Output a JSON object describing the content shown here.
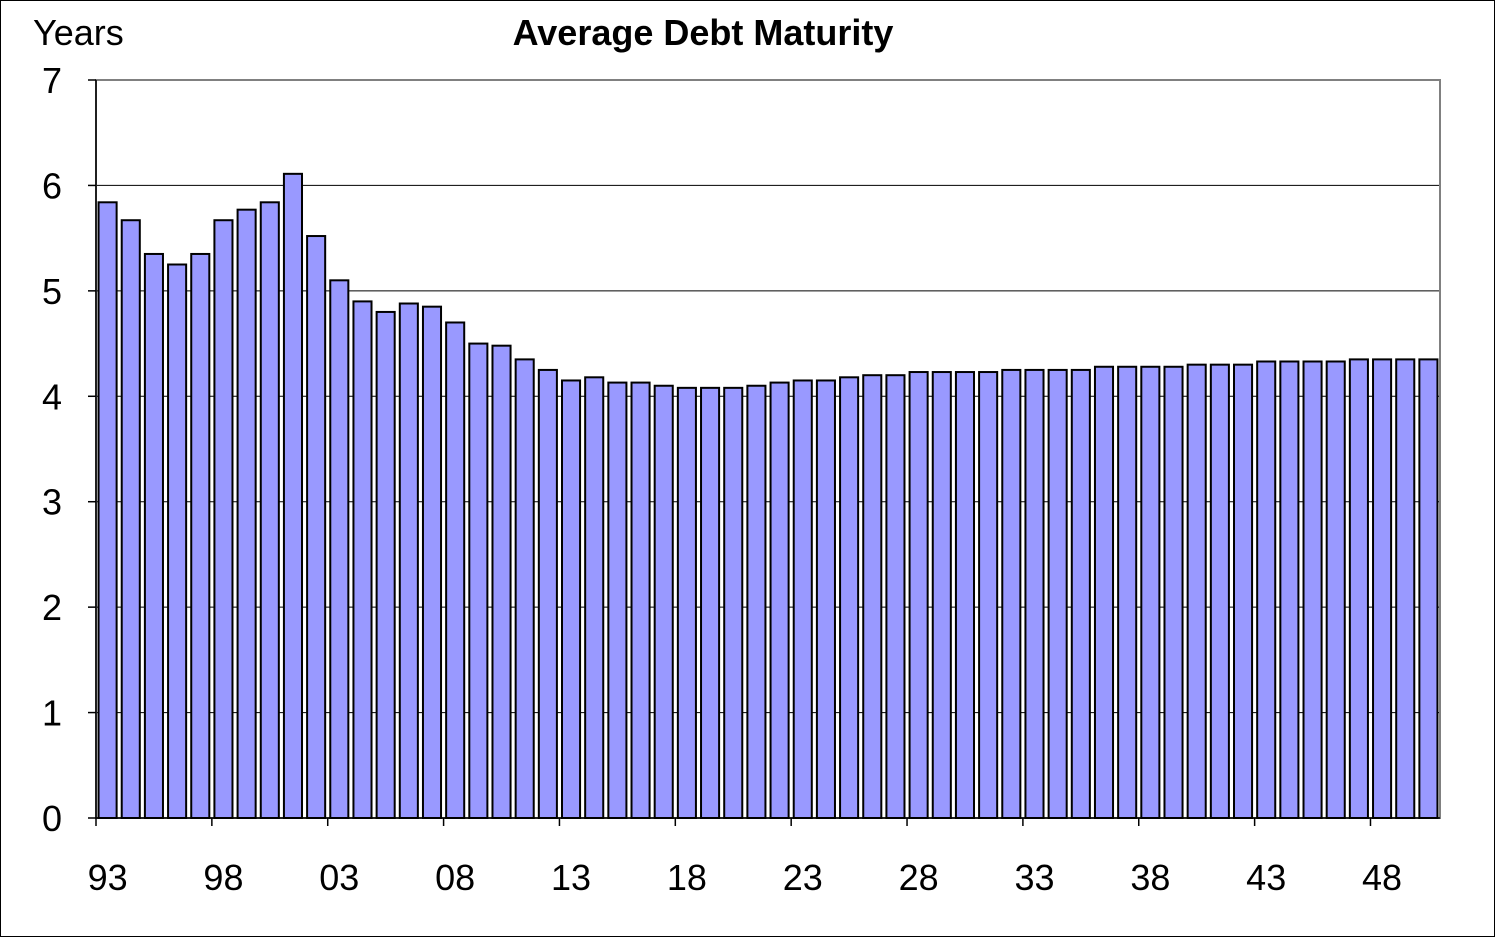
{
  "chart_data": {
    "type": "bar",
    "title": "Average Debt Maturity",
    "ylabel": "Years",
    "xlabel": "",
    "ylim": [
      0,
      7
    ],
    "yticks": [
      0,
      1,
      2,
      3,
      4,
      5,
      6,
      7
    ],
    "grid": true,
    "bar_color": "#9999ff",
    "xtick_labels": [
      "93",
      "98",
      "03",
      "08",
      "13",
      "18",
      "23",
      "28",
      "33",
      "38",
      "43",
      "48"
    ],
    "categories": [
      "93",
      "94",
      "95",
      "96",
      "97",
      "98",
      "99",
      "00",
      "01",
      "02",
      "03",
      "04",
      "05",
      "06",
      "07",
      "08",
      "09",
      "10",
      "11",
      "12",
      "13",
      "14",
      "15",
      "16",
      "17",
      "18",
      "19",
      "20",
      "21",
      "22",
      "23",
      "24",
      "25",
      "26",
      "27",
      "28",
      "29",
      "30",
      "31",
      "32",
      "33",
      "34",
      "35",
      "36",
      "37",
      "38",
      "39",
      "40",
      "41",
      "42",
      "43",
      "44",
      "45",
      "46",
      "47",
      "48",
      "49",
      "50"
    ],
    "values": [
      5.84,
      5.67,
      5.35,
      5.25,
      5.35,
      5.67,
      5.77,
      5.84,
      6.11,
      5.52,
      5.1,
      4.9,
      4.8,
      4.88,
      4.85,
      4.7,
      4.5,
      4.48,
      4.35,
      4.25,
      4.15,
      4.18,
      4.13,
      4.13,
      4.1,
      4.08,
      4.08,
      4.08,
      4.1,
      4.13,
      4.15,
      4.15,
      4.18,
      4.2,
      4.2,
      4.23,
      4.23,
      4.23,
      4.23,
      4.25,
      4.25,
      4.25,
      4.25,
      4.28,
      4.28,
      4.28,
      4.28,
      4.3,
      4.3,
      4.3,
      4.33,
      4.33,
      4.33,
      4.33,
      4.35,
      4.35,
      4.35,
      4.35
    ]
  }
}
